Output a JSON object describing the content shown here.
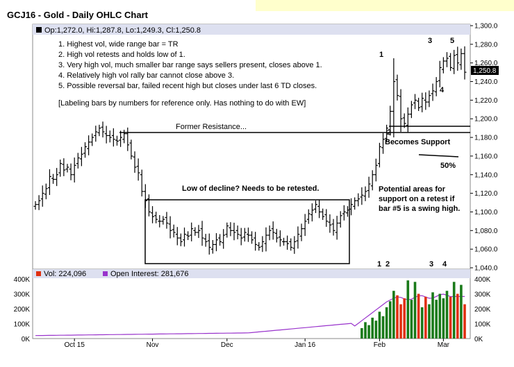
{
  "header": {
    "title": "GCJ16 - Gold - Daily OHLC Chart"
  },
  "legend": {
    "ohlc": "Op:1,272.0, Hi:1,287.8, Lo:1,249.3, Cl:1,250.8",
    "vol": "Vol: 224,096",
    "oi": "Open Interest: 281,676"
  },
  "notes": {
    "n1": "1. Highest vol, wide range bar = TR",
    "n2": "2. High vol retests and holds low of 1.",
    "n3": "3. Very high vol, much smaller bar range says sellers present, closes above 1.",
    "n4": "4. Relatively high vol rally bar cannot close above 3.",
    "n5": "5. Possible reversal bar, failed recent high but closes under last 6 TD closes.",
    "n6": "[Labeling bars by numbers for reference only.  Has nothing to do with EW]"
  },
  "annotations": {
    "former_resistance": "Former Resistance...",
    "becomes_support": "Becomes Support",
    "pct50": "50%",
    "low_decline": "Low of decline?  Needs to be retested.",
    "potential1": "Potential areas for",
    "potential2": "support on a retest if",
    "potential3": "bar #5 is a swing high.",
    "bar1": "1",
    "bar2": "2",
    "bar3": "3",
    "bar4": "4",
    "bar5": "5",
    "vbar1": "1",
    "vbar2": "2",
    "vbar3": "3",
    "vbar4": "4",
    "last_price": "1,250.8"
  },
  "chart_data": {
    "type": "ohlc",
    "title": "GCJ16 - Gold - Daily OHLC Chart",
    "x_labels": [
      "Oct 15",
      "Nov",
      "Dec",
      "Jan 16",
      "Feb",
      "Mar"
    ],
    "y_ticks": [
      "1,300.0",
      "1,280.0",
      "1,260.0",
      "1,240.0",
      "1,220.0",
      "1,200.0",
      "1,180.0",
      "1,160.0",
      "1,140.0",
      "1,120.0",
      "1,100.0",
      "1,080.0",
      "1,060.0",
      "1,040.0"
    ],
    "ylim": [
      1040,
      1300
    ],
    "vol_ticks_left": [
      "400K",
      "300K",
      "200K",
      "100K",
      "0K"
    ],
    "vol_ticks_right": [
      "400K",
      "300K",
      "200K",
      "100K",
      "0K"
    ],
    "vol_ylim": [
      0,
      400000
    ],
    "closes": [
      1108,
      1112,
      1120,
      1125,
      1138,
      1135,
      1140,
      1152,
      1145,
      1148,
      1140,
      1150,
      1158,
      1162,
      1170,
      1175,
      1180,
      1186,
      1190,
      1186,
      1182,
      1180,
      1178,
      1176,
      1180,
      1184,
      1172,
      1160,
      1148,
      1142,
      1122,
      1112,
      1100,
      1095,
      1092,
      1090,
      1092,
      1088,
      1080,
      1078,
      1072,
      1068,
      1076,
      1074,
      1082,
      1078,
      1080,
      1072,
      1068,
      1062,
      1065,
      1070,
      1068,
      1075,
      1085,
      1080,
      1078,
      1076,
      1072,
      1078,
      1075,
      1070,
      1065,
      1062,
      1068,
      1075,
      1080,
      1078,
      1072,
      1070,
      1068,
      1066,
      1062,
      1068,
      1076,
      1082,
      1090,
      1098,
      1102,
      1108,
      1100,
      1095,
      1090,
      1086,
      1080,
      1088,
      1096,
      1100,
      1102,
      1108,
      1112,
      1114,
      1118,
      1122,
      1130,
      1140,
      1150,
      1170,
      1178,
      1190,
      1208,
      1240,
      1225,
      1200,
      1195,
      1205,
      1215,
      1220,
      1212,
      1222,
      1218,
      1225,
      1230,
      1240,
      1255,
      1262,
      1265,
      1255,
      1268,
      1260,
      1270,
      1250
    ],
    "volume": [
      {
        "i": 92,
        "v": 70000
      },
      {
        "i": 93,
        "v": 110000
      },
      {
        "i": 94,
        "v": 90000
      },
      {
        "i": 95,
        "v": 140000
      },
      {
        "i": 96,
        "v": 120000
      },
      {
        "i": 97,
        "v": 180000
      },
      {
        "i": 98,
        "v": 150000
      },
      {
        "i": 99,
        "v": 210000
      },
      {
        "i": 100,
        "v": 250000
      },
      {
        "i": 101,
        "v": 320000
      },
      {
        "i": 102,
        "v": 290000
      },
      {
        "i": 103,
        "v": 230000
      },
      {
        "i": 104,
        "v": 270000
      },
      {
        "i": 105,
        "v": 390000
      },
      {
        "i": 106,
        "v": 260000
      },
      {
        "i": 107,
        "v": 380000
      },
      {
        "i": 108,
        "v": 300000
      },
      {
        "i": 109,
        "v": 210000
      },
      {
        "i": 110,
        "v": 280000
      },
      {
        "i": 111,
        "v": 230000
      },
      {
        "i": 112,
        "v": 310000
      },
      {
        "i": 113,
        "v": 260000
      },
      {
        "i": 114,
        "v": 300000
      },
      {
        "i": 115,
        "v": 270000
      },
      {
        "i": 116,
        "v": 320000
      },
      {
        "i": 117,
        "v": 280000
      },
      {
        "i": 118,
        "v": 380000
      },
      {
        "i": 119,
        "v": 300000
      },
      {
        "i": 120,
        "v": 360000
      },
      {
        "i": 121,
        "v": 230000
      }
    ],
    "open_interest_start": 20000,
    "open_interest_end": 281676,
    "colors": {
      "up": "#1a7a1a",
      "down": "#e03010",
      "bar": "#000000",
      "oi": "#9933cc",
      "legend_bg": "#dde0f0"
    }
  }
}
